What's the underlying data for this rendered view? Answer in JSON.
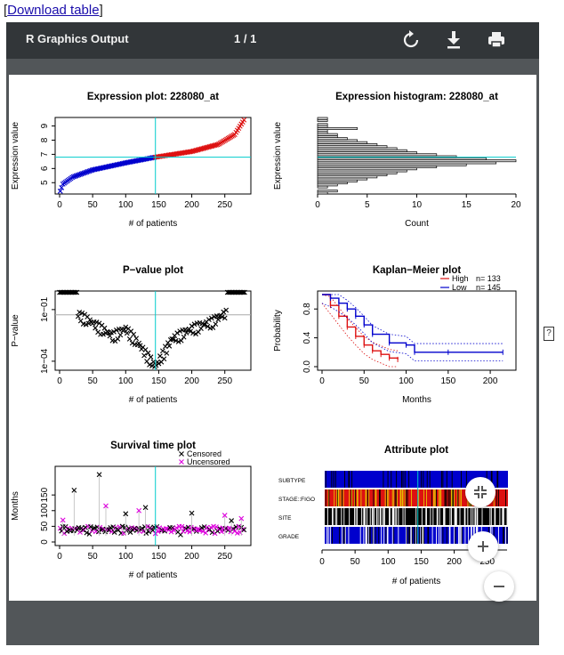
{
  "page": {
    "download_link": "Download table",
    "bracket_open": "[",
    "bracket_close": "]",
    "help_glyph": "?"
  },
  "viewer": {
    "title": "R Graphics Output",
    "page_indicator": "1 / 1",
    "icons": [
      "rotate-icon",
      "download-icon",
      "print-icon",
      "fit-page-icon",
      "zoom-in-icon",
      "zoom-out-icon"
    ]
  },
  "colors": {
    "low": "#0000cd",
    "high": "#dd1111",
    "cutoff": "#00cccc",
    "censored": "#000000",
    "uncensored": "#dd00dd"
  },
  "chart_data": [
    {
      "type": "scatter",
      "title": "Expression plot:  228080_at",
      "xlabel": "# of patients",
      "ylabel": "Expression value",
      "xlim": [
        0,
        280
      ],
      "ylim": [
        4.2,
        9.6
      ],
      "xticks": [
        "0",
        "50",
        "100",
        "150",
        "200",
        "250"
      ],
      "yticks": [
        "5",
        "6",
        "7",
        "8",
        "9"
      ],
      "cutoff_x": 145,
      "cutoff_y": 6.8,
      "series": [
        {
          "values_sample": [
            [
              1,
              4.4
            ],
            [
              5,
              4.9
            ],
            [
              20,
              5.4
            ],
            [
              50,
              5.9
            ],
            [
              100,
              6.4
            ],
            [
              145,
              6.8
            ],
            [
              200,
              7.2
            ],
            [
              240,
              7.7
            ],
            [
              265,
              8.4
            ],
            [
              280,
              9.5
            ]
          ]
        }
      ]
    },
    {
      "type": "bar",
      "orientation": "horizontal",
      "title": "Expression histogram:  228080_at",
      "xlabel": "Count",
      "ylabel": "Expression value",
      "xlim": [
        0,
        20
      ],
      "xticks": [
        "0",
        "5",
        "10",
        "15",
        "20"
      ],
      "cutoff_y": 6.8,
      "bins_low_to_high": [
        1,
        2,
        0,
        1,
        2,
        3,
        4,
        5,
        6,
        7,
        8,
        9,
        10,
        12,
        15,
        18,
        20,
        17,
        14,
        12,
        10,
        9,
        8,
        7,
        6,
        5,
        4,
        3,
        2,
        2,
        1,
        1,
        4,
        1,
        1,
        0,
        1,
        1
      ]
    },
    {
      "type": "scatter",
      "title": "P−value plot",
      "xlabel": "# of patients",
      "ylabel": "P−value",
      "log_y": true,
      "xlim": [
        0,
        280
      ],
      "xticks": [
        "0",
        "50",
        "100",
        "150",
        "200",
        "250"
      ],
      "yticks": [
        "1e−04",
        "1e−01"
      ],
      "cutoff_x": 145,
      "series": [
        {
          "values_sample": [
            [
              30,
              0.05
            ],
            [
              60,
              0.01
            ],
            [
              80,
              0.003
            ],
            [
              100,
              0.008
            ],
            [
              120,
              0.001
            ],
            [
              145,
              5e-05
            ],
            [
              170,
              0.002
            ],
            [
              200,
              0.008
            ],
            [
              230,
              0.02
            ],
            [
              250,
              0.06
            ],
            [
              270,
              1
            ],
            [
              5,
              1
            ]
          ]
        }
      ]
    },
    {
      "type": "line",
      "title": "Kaplan−Meier plot",
      "xlabel": "Months",
      "ylabel": "Probability",
      "xlim": [
        0,
        220
      ],
      "ylim": [
        0,
        1
      ],
      "xticks": [
        "0",
        "50",
        "100",
        "150",
        "200"
      ],
      "yticks": [
        "0.0",
        "0.4",
        "0.8"
      ],
      "legend": "top-right",
      "series": [
        {
          "name": "High",
          "n_label": "n= 133",
          "x": [
            0,
            10,
            20,
            30,
            40,
            50,
            60,
            70,
            80,
            90
          ],
          "y": [
            1.0,
            0.85,
            0.7,
            0.55,
            0.42,
            0.3,
            0.22,
            0.17,
            0.12,
            0.1
          ]
        },
        {
          "name": "Low",
          "n_label": "n= 145",
          "x": [
            0,
            10,
            20,
            30,
            40,
            50,
            60,
            80,
            100,
            110,
            150,
            215
          ],
          "y": [
            1.0,
            0.95,
            0.88,
            0.8,
            0.7,
            0.58,
            0.45,
            0.33,
            0.3,
            0.2,
            0.2,
            0.2
          ]
        }
      ]
    },
    {
      "type": "scatter",
      "title": "Survival time plot",
      "xlabel": "# of patients",
      "ylabel": "Months",
      "xlim": [
        0,
        280
      ],
      "ylim": [
        0,
        230
      ],
      "xticks": [
        "0",
        "50",
        "100",
        "150",
        "200",
        "250"
      ],
      "yticks": [
        "0",
        "50",
        "100",
        "150"
      ],
      "cutoff_x": 145,
      "legend": "top-right",
      "series": [
        {
          "name": "Censored",
          "values_sample": [
            [
              22,
              165
            ],
            [
              60,
              215
            ],
            [
              100,
              90
            ],
            [
              130,
              110
            ],
            [
              200,
              92
            ],
            [
              260,
              68
            ]
          ]
        },
        {
          "name": "Uncensored",
          "values_sample": [
            [
              5,
              70
            ],
            [
              70,
              115
            ],
            [
              120,
              100
            ],
            [
              250,
              85
            ],
            [
              275,
              75
            ]
          ]
        }
      ]
    },
    {
      "type": "heatmap",
      "title": "Attribute plot",
      "xlabel": "# of patients",
      "xlim": [
        0,
        280
      ],
      "xticks": [
        "0",
        "50",
        "100",
        "150",
        "200",
        "250"
      ],
      "cutoff_x": 145,
      "rows": [
        "SUBTYPE",
        "STAGE::FIGO",
        "SITE",
        "GRADE"
      ]
    }
  ]
}
